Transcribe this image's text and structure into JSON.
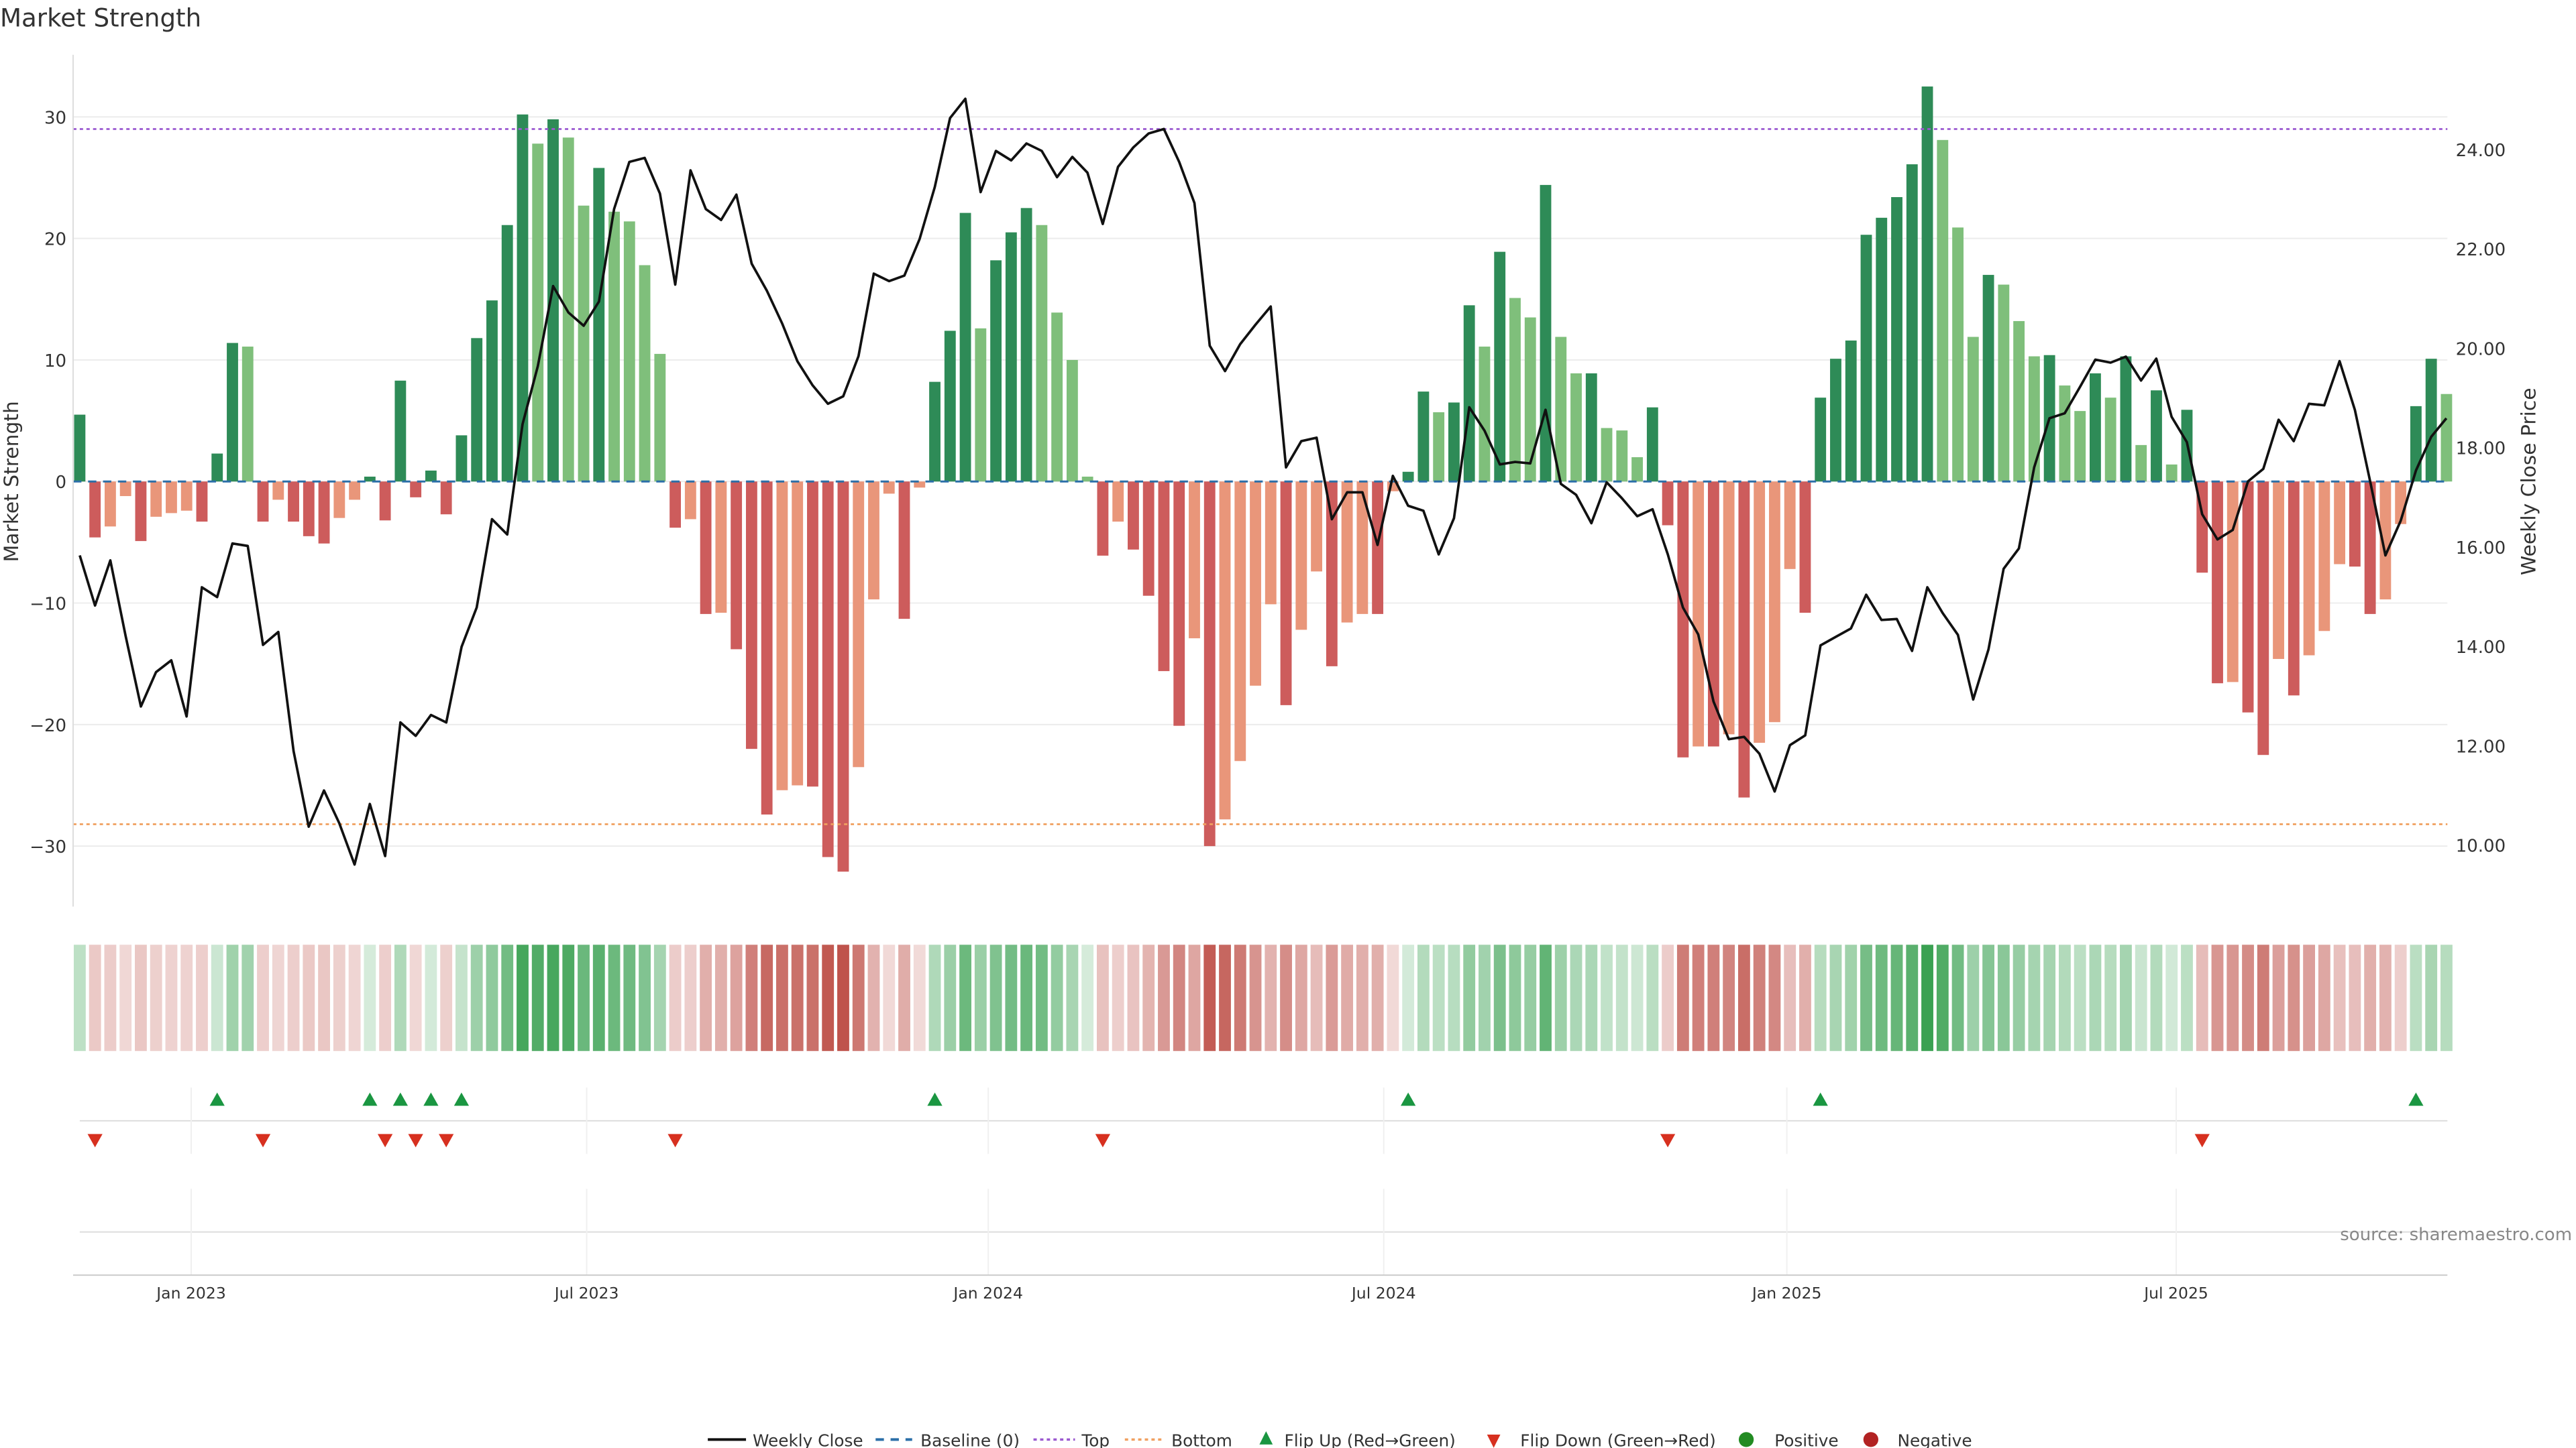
{
  "chart_data": {
    "type": "bar",
    "title": "Market Strength",
    "ylabel": "Market Strength",
    "y2label": "Weekly Close Price",
    "ylim": [
      -35,
      35
    ],
    "y2lim": [
      8.8,
      25.5
    ],
    "left_ticks": [
      {
        "value": 30,
        "label": "30"
      },
      {
        "value": 20,
        "label": "20"
      },
      {
        "value": 10,
        "label": "10"
      },
      {
        "value": 0,
        "label": "0"
      },
      {
        "value": -10,
        "label": "−10"
      },
      {
        "value": -20,
        "label": "−20"
      },
      {
        "value": -30,
        "label": "−30"
      }
    ],
    "right_ticks": [
      {
        "value": 10,
        "label": "10.00"
      },
      {
        "value": 12,
        "label": "12.00"
      },
      {
        "value": 14,
        "label": "14.00"
      },
      {
        "value": 16,
        "label": "16.00"
      },
      {
        "value": 18,
        "label": "18.00"
      },
      {
        "value": 20,
        "label": "20.00"
      },
      {
        "value": 22,
        "label": "22.00"
      },
      {
        "value": 24,
        "label": "24.00"
      }
    ],
    "x_ticks": [
      {
        "week": 7.3,
        "label": "Jan 2023"
      },
      {
        "week": 33.2,
        "label": "Jul 2023"
      },
      {
        "week": 59.5,
        "label": "Jan 2024"
      },
      {
        "week": 85.4,
        "label": "Jul 2024"
      },
      {
        "week": 111.8,
        "label": "Jan 2025"
      },
      {
        "week": 137.3,
        "label": "Jul 2025"
      }
    ],
    "top_level": 29.0,
    "bottom_level": -28.2,
    "strength": [
      5.5,
      -4.6,
      -3.7,
      -1.2,
      -4.9,
      -2.9,
      -2.6,
      -2.4,
      -3.3,
      2.3,
      11.4,
      11.1,
      -3.3,
      -1.5,
      -3.3,
      -4.5,
      -5.1,
      -3.0,
      -1.5,
      0.4,
      -3.2,
      8.3,
      -1.3,
      0.9,
      -2.7,
      3.8,
      11.8,
      14.9,
      21.1,
      30.2,
      27.8,
      29.8,
      28.3,
      22.7,
      25.8,
      22.2,
      21.4,
      17.8,
      10.5,
      -3.8,
      -3.1,
      -10.9,
      -10.8,
      -13.8,
      -22.0,
      -27.4,
      -25.4,
      -25.0,
      -25.1,
      -30.9,
      -32.1,
      -23.5,
      -9.7,
      -1.0,
      -11.3,
      -0.5,
      8.2,
      12.4,
      22.1,
      12.6,
      18.2,
      20.5,
      22.5,
      21.1,
      13.9,
      10.0,
      0.4,
      -6.1,
      -3.3,
      -5.6,
      -9.4,
      -15.6,
      -20.1,
      -12.9,
      -30.0,
      -27.8,
      -23.0,
      -16.8,
      -10.1,
      -18.4,
      -12.2,
      -7.4,
      -15.2,
      -11.6,
      -10.9,
      -10.9,
      -0.8,
      0.8,
      7.4,
      5.7,
      6.5,
      14.5,
      11.1,
      18.9,
      15.1,
      13.5,
      24.4,
      11.9,
      8.9,
      8.9,
      4.4,
      4.2,
      2.0,
      6.1,
      -3.6,
      -22.7,
      -21.8,
      -21.8,
      -20.8,
      -26.0,
      -21.5,
      -19.8,
      -7.2,
      -10.8,
      6.9,
      10.1,
      11.6,
      20.3,
      21.7,
      23.4,
      26.1,
      32.5,
      28.1,
      20.9,
      11.9,
      17.0,
      16.2,
      13.2,
      10.3,
      10.4,
      7.9,
      5.8,
      8.9,
      6.9,
      10.3,
      3.0,
      7.5,
      1.4,
      5.9,
      -7.5,
      -16.6,
      -16.5,
      -19.0,
      -22.5,
      -14.6,
      -17.6,
      -14.3,
      -12.3,
      -6.8,
      -7.0,
      -10.9,
      -9.7,
      -3.5,
      6.2,
      10.1,
      7.2
    ],
    "weekly_close": [
      15.83,
      14.82,
      15.73,
      14.21,
      12.79,
      13.48,
      13.72,
      12.59,
      15.19,
      14.99,
      16.07,
      16.02,
      14.03,
      14.29,
      11.89,
      10.37,
      11.1,
      10.44,
      9.61,
      10.83,
      9.78,
      12.47,
      12.2,
      12.62,
      12.47,
      13.99,
      14.78,
      16.56,
      16.25,
      18.47,
      19.64,
      21.25,
      20.72,
      20.45,
      20.94,
      22.8,
      23.75,
      23.83,
      23.11,
      21.28,
      23.58,
      22.8,
      22.58,
      23.09,
      21.7,
      21.16,
      20.5,
      19.74,
      19.25,
      18.88,
      19.03,
      19.84,
      21.5,
      21.35,
      21.46,
      22.2,
      23.24,
      24.63,
      25.02,
      23.14,
      23.97,
      23.78,
      24.12,
      23.97,
      23.44,
      23.85,
      23.53,
      22.5,
      23.65,
      24.04,
      24.32,
      24.41,
      23.75,
      22.92,
      20.05,
      19.54,
      20.08,
      20.47,
      20.84,
      17.6,
      18.13,
      18.2,
      16.56,
      17.1,
      17.1,
      16.04,
      17.43,
      16.83,
      16.73,
      15.85,
      16.58,
      18.81,
      18.34,
      17.66,
      17.71,
      17.68,
      18.76,
      17.27,
      17.05,
      16.48,
      17.3,
      16.98,
      16.62,
      16.76,
      15.85,
      14.78,
      14.24,
      12.89,
      12.13,
      12.18,
      11.84,
      11.08,
      12.01,
      12.21,
      14.02,
      14.19,
      14.36,
      15.04,
      14.53,
      14.55,
      13.91,
      15.19,
      14.67,
      14.23,
      12.93,
      13.94,
      15.56,
      15.97,
      17.6,
      18.59,
      18.69,
      19.22,
      19.77,
      19.71,
      19.83,
      19.35,
      19.79,
      18.62,
      18.11,
      16.66,
      16.15,
      16.34,
      17.32,
      17.57,
      18.56,
      18.13,
      18.88,
      18.85,
      19.74,
      18.76,
      17.32,
      15.83,
      16.53,
      17.54,
      18.22,
      18.59
    ],
    "colors": {
      "pos_rising": "#2e8b57",
      "pos_falling": "#7fbf7b",
      "neg_falling": "#cd5c5c",
      "neg_rising": "#e9967a",
      "baseline": "#2b6fa8",
      "top": "#9b59d0",
      "bottom": "#f0a060",
      "flip_up": "#1a9641",
      "flip_down": "#d7301f",
      "positive": "#228b22",
      "negative": "#b22222",
      "close": "#111111"
    },
    "legend": {
      "position": "bottom-center",
      "items": [
        "Weekly Close",
        "Baseline (0)",
        "Top",
        "Bottom",
        "Flip Up (Red→Green)",
        "Flip Down (Green→Red)",
        "Positive",
        "Negative"
      ]
    },
    "source": "source: sharemaestro.com"
  }
}
